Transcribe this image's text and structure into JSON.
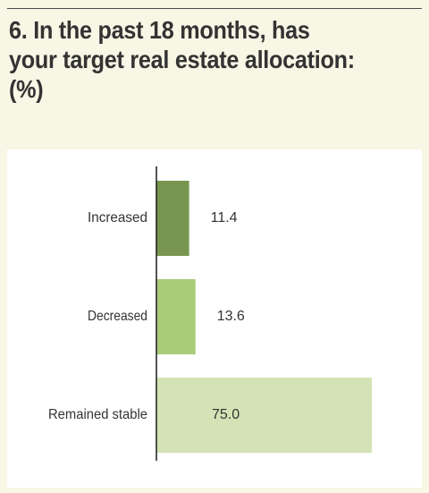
{
  "title": "6. In the past 18 months, has your target real estate allocation: (%)",
  "colors": {
    "background": "#f8f6e5",
    "panel": "#ffffff",
    "text": "#333333",
    "axis": "#1a1a1a"
  },
  "chart_data": {
    "type": "bar",
    "orientation": "horizontal",
    "title": "6. In the past 18 months, has your target real estate allocation: (%)",
    "xlabel": "",
    "ylabel": "",
    "xlim": [
      0,
      75
    ],
    "grid": false,
    "legend": "none",
    "categories": [
      "Increased",
      "Decreased",
      "Remained stable"
    ],
    "values": [
      11.4,
      13.6,
      75.0
    ],
    "value_labels": [
      "11.4",
      "13.6",
      "75.0"
    ],
    "bar_colors": [
      "#78964f",
      "#a9cc78",
      "#d4e3b5"
    ]
  }
}
